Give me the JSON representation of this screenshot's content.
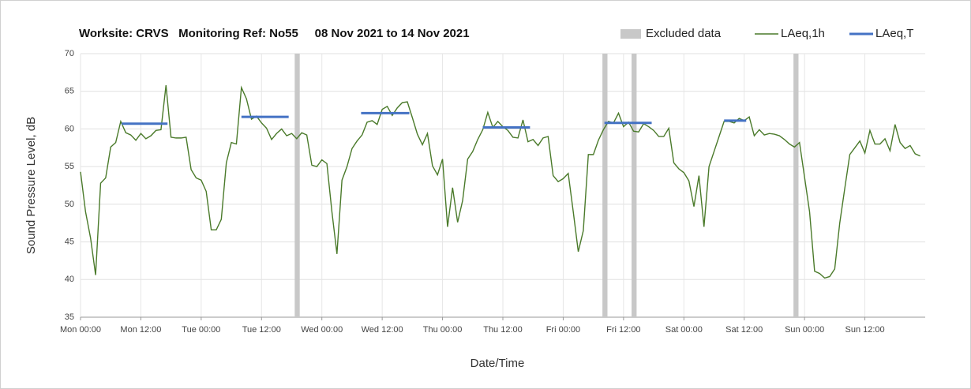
{
  "chart_data": {
    "type": "line",
    "title": "Worksite: CRVS   Monitoring Ref: No55     08 Nov 2021 to 14 Nov 2021",
    "xlabel": "Date/Time",
    "ylabel": "Sound Pressure Level, dB",
    "xlim": [
      0,
      168
    ],
    "ylim": [
      35,
      70
    ],
    "xticks": [
      {
        "value": 0,
        "label": "Mon 00:00"
      },
      {
        "value": 12,
        "label": "Mon 12:00"
      },
      {
        "value": 24,
        "label": "Tue 00:00"
      },
      {
        "value": 36,
        "label": "Tue 12:00"
      },
      {
        "value": 48,
        "label": "Wed 00:00"
      },
      {
        "value": 60,
        "label": "Wed 12:00"
      },
      {
        "value": 72,
        "label": "Thu 00:00"
      },
      {
        "value": 84,
        "label": "Thu 12:00"
      },
      {
        "value": 96,
        "label": "Fri 00:00"
      },
      {
        "value": 108,
        "label": "Fri 12:00"
      },
      {
        "value": 120,
        "label": "Sat 00:00"
      },
      {
        "value": 132,
        "label": "Sat 12:00"
      },
      {
        "value": 144,
        "label": "Sun 00:00"
      },
      {
        "value": 156,
        "label": "Sun 12:00"
      }
    ],
    "yticks": [
      35,
      40,
      45,
      50,
      55,
      60,
      65,
      70
    ],
    "grid": true,
    "legend": "top-right",
    "excluded": {
      "name": "Excluded data",
      "color": "#c8c8c8",
      "ranges": [
        [
          42.6,
          43.6
        ],
        [
          103.8,
          104.8
        ],
        [
          109.6,
          110.6
        ],
        [
          141.8,
          142.8
        ]
      ]
    },
    "series": [
      {
        "name": "LAeq,1h",
        "color": "#4a7a2a",
        "x": [
          0,
          1,
          2,
          3,
          4,
          5,
          6,
          7,
          8,
          9,
          10,
          11,
          12,
          13,
          14,
          15,
          16,
          17,
          18,
          19,
          20,
          21,
          22,
          23,
          24,
          25,
          26,
          27,
          28,
          29,
          30,
          31,
          32,
          33,
          34,
          35,
          36,
          37,
          38,
          39,
          40,
          41,
          42,
          43,
          44,
          45,
          46,
          47,
          48,
          49,
          50,
          51,
          52,
          53,
          54,
          55,
          56,
          57,
          58,
          59,
          60,
          61,
          62,
          63,
          64,
          65,
          66,
          67,
          68,
          69,
          70,
          71,
          72,
          73,
          74,
          75,
          76,
          77,
          78,
          79,
          80,
          81,
          82,
          83,
          84,
          85,
          86,
          87,
          88,
          89,
          90,
          91,
          92,
          93,
          94,
          95,
          96,
          97,
          98,
          99,
          100,
          101,
          102,
          103,
          104,
          105,
          106,
          107,
          108,
          109,
          110,
          111,
          112,
          113,
          114,
          115,
          116,
          117,
          118,
          119,
          120,
          121,
          122,
          123,
          124,
          125,
          126,
          127,
          128,
          129,
          130,
          131,
          132,
          133,
          134,
          135,
          136,
          137,
          138,
          139,
          140,
          141,
          142,
          143,
          144,
          145,
          146,
          147,
          148,
          149,
          150,
          151,
          152,
          153,
          154,
          155,
          156,
          157,
          158,
          159,
          160,
          161,
          162,
          163,
          164,
          165,
          166,
          167
        ],
        "values": [
          54.3,
          49,
          45.5,
          40.6,
          52.8,
          53.5,
          57.6,
          58.2,
          61,
          59.5,
          59.2,
          58.5,
          59.4,
          58.7,
          59.1,
          59.8,
          59.9,
          65.8,
          58.9,
          58.8,
          58.8,
          58.9,
          54.6,
          53.5,
          53.2,
          51.7,
          46.6,
          46.6,
          48,
          55.5,
          58.2,
          58,
          65.5,
          64,
          61.3,
          61.7,
          60.8,
          60.1,
          58.6,
          59.4,
          60,
          59.1,
          59.4,
          58.7,
          59.5,
          59.2,
          55.2,
          55,
          55.9,
          55.4,
          49,
          43.4,
          53.2,
          55,
          57.4,
          58.4,
          59.2,
          60.9,
          61.1,
          60.6,
          62.6,
          63,
          61.8,
          62.8,
          63.5,
          63.6,
          61.5,
          59.3,
          57.9,
          59.4,
          55.1,
          53.9,
          56,
          47,
          52.2,
          47.6,
          50.5,
          56,
          57,
          58.6,
          59.9,
          62.2,
          60.2,
          61,
          60.3,
          59.8,
          58.9,
          58.8,
          61.2,
          58.3,
          58.6,
          57.8,
          58.8,
          59,
          53.8,
          53,
          53.4,
          54.1,
          49,
          43.7,
          46.5,
          56.6,
          56.6,
          58.5,
          59.9,
          61,
          60.8,
          62.1,
          60.3,
          60.9,
          59.7,
          59.6,
          60.7,
          60.3,
          59.8,
          59,
          59,
          60.1,
          55.5,
          54.7,
          54.2,
          53.1,
          49.7,
          53.8,
          47,
          55,
          57,
          59,
          61,
          61,
          60.8,
          61.4,
          61.1,
          61.6,
          59.1,
          59.9,
          59.2,
          59.4,
          59.3,
          59.1,
          58.6,
          58,
          57.6,
          58.2,
          53.6,
          49,
          41.1,
          40.8,
          40.2,
          40.4,
          41.4,
          47.5,
          52.1,
          56.6,
          57.5,
          58.4,
          56.8,
          59.8,
          58,
          58,
          58.7,
          57.1,
          60.6,
          58.2,
          57.4,
          57.8,
          56.7,
          56.4
        ]
      },
      {
        "name": "LAeq,T",
        "color": "#4472c4",
        "x_ranges": [
          [
            8.2,
            17.3
          ],
          [
            32,
            41.4
          ],
          [
            55.8,
            65.4
          ],
          [
            80,
            89.4
          ],
          [
            104.2,
            113.6
          ],
          [
            128,
            132.4
          ]
        ],
        "values": [
          60.7,
          61.6,
          62.1,
          60.2,
          60.8,
          61.1
        ]
      }
    ]
  }
}
